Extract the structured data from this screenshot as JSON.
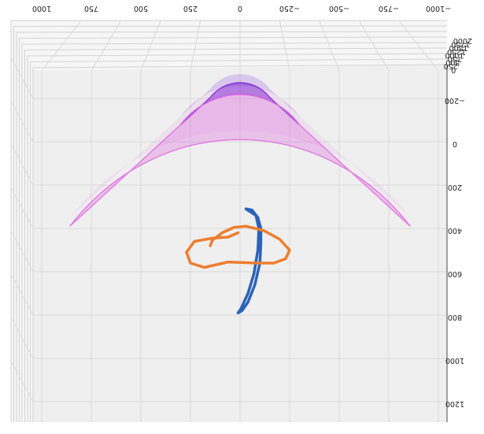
{
  "chart_data": {
    "type": "3d-scatter",
    "title": "",
    "view": "rotated 180 degrees (tick labels drawn upside-down)",
    "grid": true,
    "pane_color": "#efefef",
    "x_axis": {
      "label": "",
      "ticks": [
        1000,
        750,
        500,
        250,
        0,
        -250,
        -500,
        -750,
        -1000
      ],
      "tick_labels": [
        "1000",
        "750",
        "500",
        "250",
        "0",
        "−250",
        "−500",
        "−750",
        "−1000"
      ],
      "range": [
        -1100,
        1050
      ]
    },
    "y_axis": {
      "label": "",
      "ticks": [
        -200,
        0,
        200,
        400,
        600,
        800,
        1000,
        1200
      ],
      "tick_labels": [
        "−200",
        "0",
        "200",
        "400",
        "600",
        "800",
        "1000",
        "1200"
      ],
      "range": [
        -320,
        1230
      ]
    },
    "z_axis": {
      "label": "",
      "ticks": [
        2000,
        1750,
        1500,
        1250,
        1000,
        750,
        500,
        250,
        0
      ],
      "tick_labels": [
        "2000",
        "1750",
        "1500",
        "1250",
        "1000",
        "750",
        "500",
        "250",
        "0"
      ]
    },
    "series": [
      {
        "kind": "annular-sector",
        "color": "#7a1fd6",
        "center": [
          0,
          -330
        ],
        "inner_radius": 200,
        "outer_radius": 390,
        "angle_span_deg": [
          -50,
          50
        ],
        "opacity": 0.55
      },
      {
        "kind": "annular-sector",
        "color": "#e070e0",
        "center": [
          0,
          -330
        ],
        "inner_radius": 390,
        "outer_radius": 1120,
        "angle_span_deg": [
          -50,
          50
        ],
        "opacity": 0.35
      },
      {
        "kind": "line",
        "color": "#2b63b8",
        "x": [
          -30,
          -80,
          -95,
          -90,
          -70,
          -40,
          -5,
          10,
          -10,
          -40,
          -75,
          -100,
          -105,
          -105,
          -90,
          -60,
          -30
        ],
        "y": [
          310,
          340,
          400,
          500,
          610,
          700,
          770,
          790,
          780,
          740,
          660,
          560,
          470,
          400,
          350,
          315,
          310
        ]
      },
      {
        "kind": "line",
        "color": "#ee7d2d",
        "x": [
          10,
          60,
          140,
          230,
          270,
          250,
          180,
          60,
          -80,
          -170,
          -230,
          -250,
          -200,
          -120,
          -30,
          30,
          90,
          140,
          150
        ],
        "y": [
          420,
          440,
          445,
          460,
          510,
          560,
          580,
          555,
          560,
          560,
          540,
          500,
          450,
          410,
          390,
          395,
          420,
          455,
          480
        ]
      }
    ]
  }
}
